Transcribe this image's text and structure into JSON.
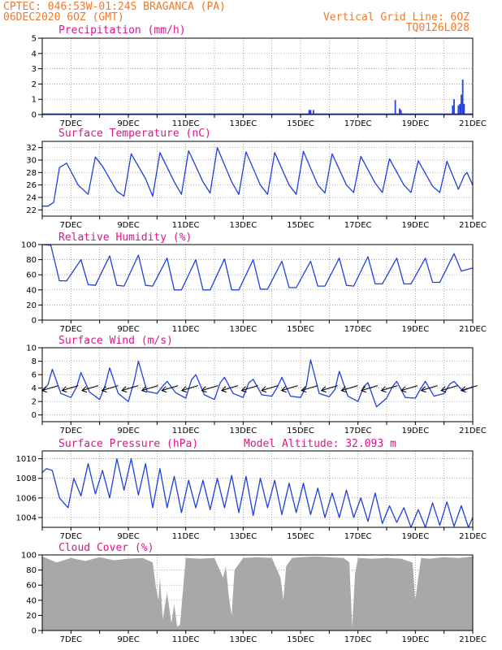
{
  "header": {
    "left_line1": "CPTEC:  046:53W-01:24S  BRAGANCA (PA)",
    "left_line2": "06DEC2020 6OZ (GMT)",
    "right_line1": "Vertical Grid Line: 6OZ",
    "right_line2": "TQ0126L028"
  },
  "colors": {
    "header": "#f07828",
    "panel_title": "#e0148c",
    "series": "#2040e0",
    "cloud_fill": "#a8a8a8",
    "grid": "#8a8a8a"
  },
  "chart_data": [
    {
      "type": "bar",
      "title": "Precipitation (mm/h)",
      "ylim": [
        0,
        5
      ],
      "yticks": [
        0,
        1,
        2,
        3,
        4,
        5
      ],
      "xticks": [
        "7DEC",
        "9DEC",
        "11DEC",
        "13DEC",
        "15DEC",
        "17DEC",
        "19DEC",
        "21DEC"
      ],
      "x_unit": "days since 06DEC 06Z",
      "bars": [
        {
          "x": 0.45,
          "value": 0.05
        },
        {
          "x": 0.55,
          "value": 0.04
        },
        {
          "x": 4.3,
          "value": 0.05
        },
        {
          "x": 9.3,
          "value": 0.3
        },
        {
          "x": 9.35,
          "value": 0.3
        },
        {
          "x": 9.45,
          "value": 0.3
        },
        {
          "x": 12.3,
          "value": 0.95
        },
        {
          "x": 12.45,
          "value": 0.4
        },
        {
          "x": 12.5,
          "value": 0.3
        },
        {
          "x": 14.3,
          "value": 0.6
        },
        {
          "x": 14.35,
          "value": 1.0
        },
        {
          "x": 14.5,
          "value": 0.6
        },
        {
          "x": 14.55,
          "value": 0.7
        },
        {
          "x": 14.6,
          "value": 1.3
        },
        {
          "x": 14.65,
          "value": 2.3
        },
        {
          "x": 14.7,
          "value": 0.7
        }
      ]
    },
    {
      "type": "line",
      "title": "Surface Temperature (nC)",
      "ylim": [
        21,
        33
      ],
      "yticks": [
        22,
        24,
        26,
        28,
        30,
        32
      ],
      "xticks": [
        "7DEC",
        "9DEC",
        "11DEC",
        "13DEC",
        "15DEC",
        "17DEC",
        "19DEC",
        "21DEC"
      ],
      "series": [
        {
          "x": [
            0,
            0.2,
            0.4,
            0.6,
            0.85,
            1.25,
            1.6,
            1.85,
            2.1,
            2.6,
            2.85,
            3.1,
            3.6,
            3.85,
            4.1,
            4.6,
            4.85,
            5.1,
            5.6,
            5.85,
            6.1,
            6.6,
            6.85,
            7.1,
            7.6,
            7.85,
            8.1,
            8.6,
            8.85,
            9.1,
            9.6,
            9.85,
            10.1,
            10.6,
            10.85,
            11.1,
            11.6,
            11.85,
            12.1,
            12.6,
            12.85,
            13.1,
            13.6,
            13.85,
            14.1,
            14.5,
            14.7,
            14.8,
            15
          ],
          "y": [
            22.6,
            22.6,
            23.2,
            28.8,
            29.5,
            26.0,
            24.5,
            30.5,
            29.0,
            25.0,
            24.2,
            31.0,
            27.0,
            24.2,
            31.2,
            26.5,
            24.5,
            31.5,
            26.5,
            24.7,
            32.0,
            26.5,
            24.5,
            31.3,
            26.0,
            24.5,
            31.2,
            26.0,
            24.5,
            31.4,
            26.0,
            24.7,
            31.0,
            26.0,
            24.8,
            30.6,
            26.3,
            24.8,
            30.2,
            26.0,
            24.8,
            29.9,
            25.8,
            24.8,
            29.8,
            25.3,
            27.5,
            28.0,
            26.0
          ]
        }
      ]
    },
    {
      "type": "line",
      "title": "Relative Humidity (%)",
      "ylim": [
        0,
        100
      ],
      "yticks": [
        0,
        20,
        40,
        60,
        80,
        100
      ],
      "xticks": [
        "7DEC",
        "9DEC",
        "11DEC",
        "13DEC",
        "15DEC",
        "17DEC",
        "19DEC",
        "21DEC"
      ],
      "series": [
        {
          "x": [
            0,
            0.3,
            0.6,
            0.85,
            1.35,
            1.6,
            1.85,
            2.35,
            2.6,
            2.85,
            3.35,
            3.6,
            3.85,
            4.35,
            4.6,
            4.85,
            5.35,
            5.6,
            5.85,
            6.35,
            6.6,
            6.85,
            7.35,
            7.6,
            7.85,
            8.35,
            8.6,
            8.85,
            9.35,
            9.6,
            9.85,
            10.35,
            10.6,
            10.85,
            11.35,
            11.6,
            11.85,
            12.35,
            12.6,
            12.85,
            13.35,
            13.6,
            13.85,
            14.35,
            14.6,
            14.8,
            15
          ],
          "y": [
            100,
            99,
            52,
            52,
            80,
            47,
            46,
            85,
            46,
            45,
            86,
            46,
            45,
            82,
            40,
            40,
            80,
            40,
            40,
            81,
            40,
            40,
            80,
            41,
            41,
            78,
            43,
            43,
            78,
            45,
            45,
            82,
            46,
            45,
            84,
            48,
            48,
            82,
            48,
            48,
            82,
            50,
            50,
            88,
            65,
            67,
            69
          ]
        }
      ]
    },
    {
      "type": "line",
      "title": "Surface Wind (m/s)",
      "ylim": [
        -1,
        10
      ],
      "yticks": [
        0,
        2,
        4,
        6,
        8,
        10
      ],
      "xticks": [
        "7DEC",
        "9DEC",
        "11DEC",
        "13DEC",
        "15DEC",
        "17DEC",
        "19DEC",
        "21DEC"
      ],
      "series": [
        {
          "x": [
            0,
            0.2,
            0.35,
            0.65,
            1.0,
            1.2,
            1.35,
            1.65,
            2.0,
            2.2,
            2.35,
            2.65,
            3.0,
            3.2,
            3.35,
            3.65,
            4.0,
            4.2,
            4.35,
            4.65,
            5.0,
            5.2,
            5.35,
            5.65,
            6.0,
            6.2,
            6.35,
            6.65,
            7.0,
            7.2,
            7.35,
            7.65,
            8.0,
            8.2,
            8.35,
            8.65,
            9.0,
            9.2,
            9.35,
            9.65,
            10.0,
            10.2,
            10.35,
            10.65,
            11.0,
            11.2,
            11.35,
            11.65,
            12.0,
            12.2,
            12.35,
            12.65,
            13.0,
            13.2,
            13.35,
            13.65,
            14.0,
            14.2,
            14.35,
            14.65,
            15
          ],
          "y": [
            3.5,
            4.5,
            6.8,
            3.2,
            2.6,
            4.2,
            6.3,
            3.4,
            2.3,
            4.5,
            7.0,
            3.2,
            2.0,
            5.0,
            8.0,
            3.5,
            3.2,
            4.3,
            5.0,
            3.3,
            2.5,
            5.2,
            6.0,
            3.0,
            2.3,
            4.8,
            5.6,
            3.2,
            2.6,
            4.8,
            5.3,
            3.0,
            2.8,
            4.2,
            5.6,
            2.8,
            2.6,
            4.3,
            8.2,
            3.2,
            2.7,
            3.8,
            6.5,
            2.8,
            2.0,
            4.2,
            4.8,
            1.2,
            2.5,
            4.2,
            5.0,
            2.6,
            2.5,
            4.0,
            5.0,
            2.8,
            3.2,
            4.6,
            5.0,
            3.6,
            4.2
          ]
        }
      ],
      "wind_arrows_count": 22
    },
    {
      "type": "line",
      "title": "Surface Pressure (hPa)",
      "annotation": "Model Altitude: 32.093 m",
      "ylim": [
        1003,
        1010.8
      ],
      "yticks": [
        1004,
        1006,
        1008,
        1010
      ],
      "xticks": [
        "7DEC",
        "9DEC",
        "11DEC",
        "13DEC",
        "15DEC",
        "17DEC",
        "19DEC",
        "21DEC"
      ],
      "series": [
        {
          "x": [
            0,
            0.15,
            0.35,
            0.6,
            0.9,
            1.1,
            1.35,
            1.6,
            1.85,
            2.1,
            2.35,
            2.6,
            2.85,
            3.1,
            3.35,
            3.6,
            3.85,
            4.1,
            4.35,
            4.6,
            4.85,
            5.1,
            5.35,
            5.6,
            5.85,
            6.1,
            6.35,
            6.6,
            6.85,
            7.1,
            7.35,
            7.6,
            7.85,
            8.1,
            8.35,
            8.6,
            8.85,
            9.1,
            9.35,
            9.6,
            9.85,
            10.1,
            10.35,
            10.6,
            10.85,
            11.1,
            11.35,
            11.6,
            11.85,
            12.1,
            12.35,
            12.6,
            12.85,
            13.1,
            13.35,
            13.6,
            13.85,
            14.1,
            14.35,
            14.6,
            14.85,
            15
          ],
          "y": [
            1008.6,
            1009.0,
            1008.8,
            1006.0,
            1005.0,
            1008.0,
            1006.2,
            1009.5,
            1006.4,
            1008.8,
            1006.0,
            1010.0,
            1006.8,
            1010.0,
            1006.3,
            1009.5,
            1005.0,
            1009.0,
            1005.0,
            1008.2,
            1004.5,
            1007.8,
            1005.0,
            1007.8,
            1004.8,
            1008.0,
            1005.0,
            1008.3,
            1004.5,
            1008.2,
            1004.2,
            1008.0,
            1005.0,
            1007.8,
            1004.3,
            1007.5,
            1004.5,
            1007.5,
            1004.3,
            1007.0,
            1004.0,
            1006.5,
            1004.0,
            1006.8,
            1004.0,
            1006.0,
            1003.6,
            1006.5,
            1003.4,
            1005.2,
            1003.5,
            1005.0,
            1003.0,
            1004.8,
            1003.0,
            1005.5,
            1003.2,
            1005.6,
            1003.1,
            1005.2,
            1003.0,
            1004.0
          ]
        }
      ]
    },
    {
      "type": "area",
      "title": "Cloud Cover (%)",
      "ylim": [
        0,
        100
      ],
      "yticks": [
        0,
        20,
        40,
        60,
        80,
        100
      ],
      "xticks": [
        "7DEC",
        "9DEC",
        "11DEC",
        "13DEC",
        "15DEC",
        "17DEC",
        "19DEC",
        "21DEC"
      ],
      "series": [
        {
          "x": [
            0,
            0.5,
            1.0,
            1.5,
            2.0,
            2.5,
            3.0,
            3.5,
            3.85,
            3.95,
            4.05,
            4.1,
            4.2,
            4.35,
            4.5,
            4.6,
            4.7,
            4.8,
            5.0,
            5.5,
            6.0,
            6.3,
            6.4,
            6.5,
            6.6,
            6.7,
            7.0,
            7.5,
            8.0,
            8.3,
            8.4,
            8.5,
            8.7,
            9.0,
            9.5,
            10.0,
            10.5,
            10.7,
            10.8,
            10.9,
            11.0,
            11.5,
            12.0,
            12.5,
            12.9,
            13.0,
            13.1,
            13.2,
            13.5,
            14.0,
            14.5,
            15
          ],
          "y": [
            98,
            90,
            96,
            92,
            97,
            93,
            95,
            96,
            90,
            60,
            40,
            70,
            15,
            50,
            10,
            35,
            5,
            8,
            96,
            95,
            96,
            70,
            85,
            45,
            20,
            80,
            96,
            97,
            96,
            70,
            40,
            85,
            96,
            97,
            98,
            97,
            96,
            90,
            5,
            75,
            96,
            95,
            96,
            95,
            90,
            40,
            70,
            96,
            95,
            97,
            96,
            98
          ]
        }
      ]
    }
  ]
}
